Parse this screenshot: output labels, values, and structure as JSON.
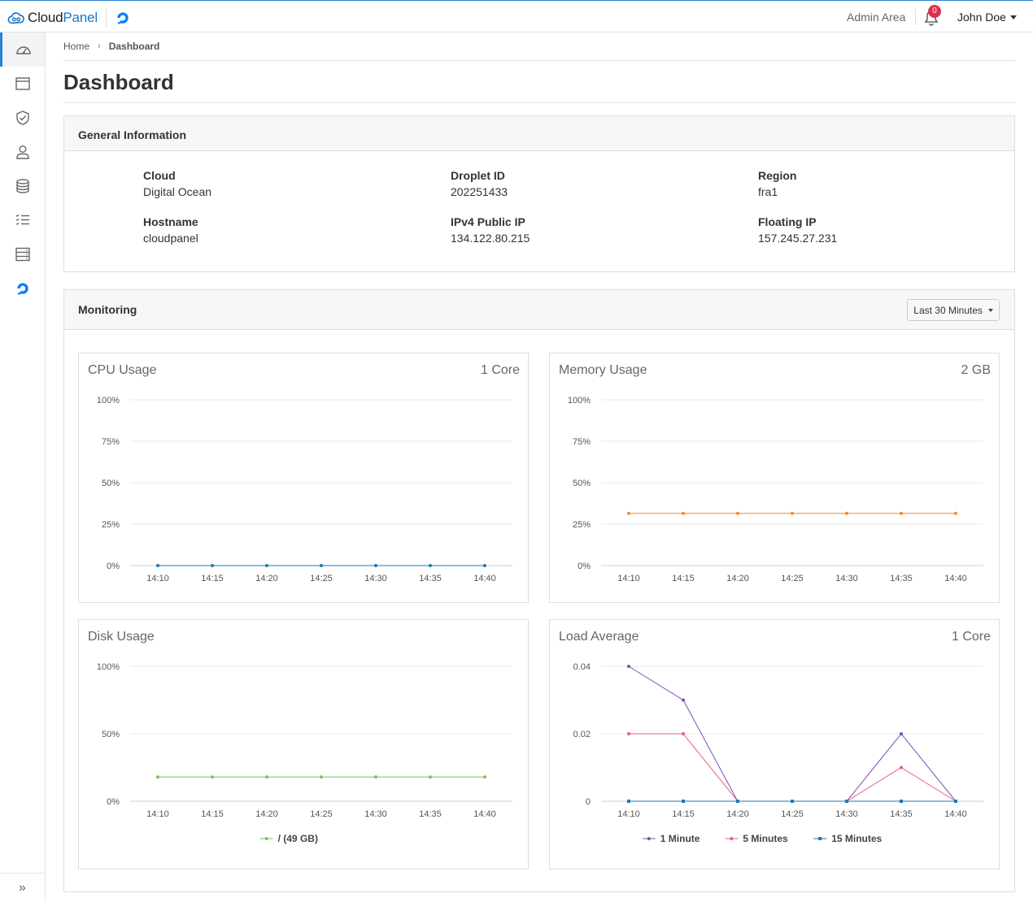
{
  "app": {
    "brand_part1": "Cloud",
    "brand_part2": "Panel",
    "admin_area_label": "Admin Area",
    "notification_count": "0",
    "user_name": "John Doe",
    "accent_color": "#2d7fd3"
  },
  "sidebar": {
    "items": [
      {
        "icon": "dashboard-icon",
        "active": true
      },
      {
        "icon": "browser-window-icon",
        "active": false
      },
      {
        "icon": "shield-check-icon",
        "active": false
      },
      {
        "icon": "user-icon",
        "active": false
      },
      {
        "icon": "database-icon",
        "active": false
      },
      {
        "icon": "task-list-icon",
        "active": false
      },
      {
        "icon": "server-icon",
        "active": false
      },
      {
        "icon": "digitalocean-icon",
        "active": false
      }
    ],
    "collapse_icon": "double-chevron-right-icon"
  },
  "breadcrumb": {
    "home": "Home",
    "current": "Dashboard"
  },
  "page_title": "Dashboard",
  "general_info": {
    "title": "General Information",
    "fields": {
      "cloud": {
        "label": "Cloud",
        "value": "Digital Ocean"
      },
      "droplet_id": {
        "label": "Droplet ID",
        "value": "202251433"
      },
      "region": {
        "label": "Region",
        "value": "fra1"
      },
      "hostname": {
        "label": "Hostname",
        "value": "cloudpanel"
      },
      "ipv4": {
        "label": "IPv4 Public IP",
        "value": "134.122.80.215"
      },
      "floating_ip": {
        "label": "Floating IP",
        "value": "157.245.27.231"
      }
    }
  },
  "monitoring": {
    "title": "Monitoring",
    "range_selected": "Last 30 Minutes"
  },
  "chart_data": [
    {
      "id": "cpu",
      "type": "line",
      "title": "CPU Usage",
      "subtitle": "1 Core",
      "categories": [
        "14:10",
        "14:15",
        "14:20",
        "14:25",
        "14:30",
        "14:35",
        "14:40"
      ],
      "yticks": [
        "0%",
        "25%",
        "50%",
        "75%",
        "100%"
      ],
      "ylim": [
        0,
        100
      ],
      "grid": true,
      "legend": null,
      "series": [
        {
          "values": [
            0,
            0,
            0,
            0,
            0,
            0,
            0
          ],
          "color": "#1f77b4",
          "marker": "circle"
        }
      ]
    },
    {
      "id": "memory",
      "type": "line",
      "title": "Memory Usage",
      "subtitle": "2 GB",
      "categories": [
        "14:10",
        "14:15",
        "14:20",
        "14:25",
        "14:30",
        "14:35",
        "14:40"
      ],
      "yticks": [
        "0%",
        "25%",
        "50%",
        "75%",
        "100%"
      ],
      "ylim": [
        0,
        100
      ],
      "grid": true,
      "legend": null,
      "series": [
        {
          "values": [
            31.5,
            31.5,
            31.5,
            31.5,
            31.5,
            31.5,
            31.5
          ],
          "color": "#f28a2e",
          "marker": "circle"
        }
      ]
    },
    {
      "id": "disk",
      "type": "line",
      "title": "Disk Usage",
      "subtitle": "",
      "categories": [
        "14:10",
        "14:15",
        "14:20",
        "14:25",
        "14:30",
        "14:35",
        "14:40"
      ],
      "yticks": [
        "0%",
        "50%",
        "100%"
      ],
      "ylim": [
        0,
        100
      ],
      "grid": true,
      "legend": "bottom",
      "series": [
        {
          "name": "/ (49 GB)",
          "values": [
            18,
            18,
            18,
            18,
            18,
            18,
            18
          ],
          "color": "#7cc35a",
          "marker": "circle"
        }
      ]
    },
    {
      "id": "load",
      "type": "line",
      "title": "Load Average",
      "subtitle": "1 Core",
      "categories": [
        "14:10",
        "14:15",
        "14:20",
        "14:25",
        "14:30",
        "14:35",
        "14:40"
      ],
      "yticks": [
        "0",
        "0.02",
        "0.04"
      ],
      "ylim": [
        0,
        0.04
      ],
      "grid": true,
      "legend": "bottom",
      "series": [
        {
          "name": "1 Minute",
          "values": [
            0.04,
            0.03,
            0,
            null,
            0,
            0.02,
            0
          ],
          "color": "#7b4fb8",
          "marker": "circle"
        },
        {
          "name": "5 Minutes",
          "values": [
            0.02,
            0.02,
            0,
            null,
            0,
            0.01,
            0
          ],
          "color": "#e8607a",
          "marker": "circle"
        },
        {
          "name": "15 Minutes",
          "values": [
            0,
            0,
            0,
            0,
            0,
            0,
            0
          ],
          "color": "#1f77b4",
          "marker": "square"
        }
      ]
    }
  ]
}
